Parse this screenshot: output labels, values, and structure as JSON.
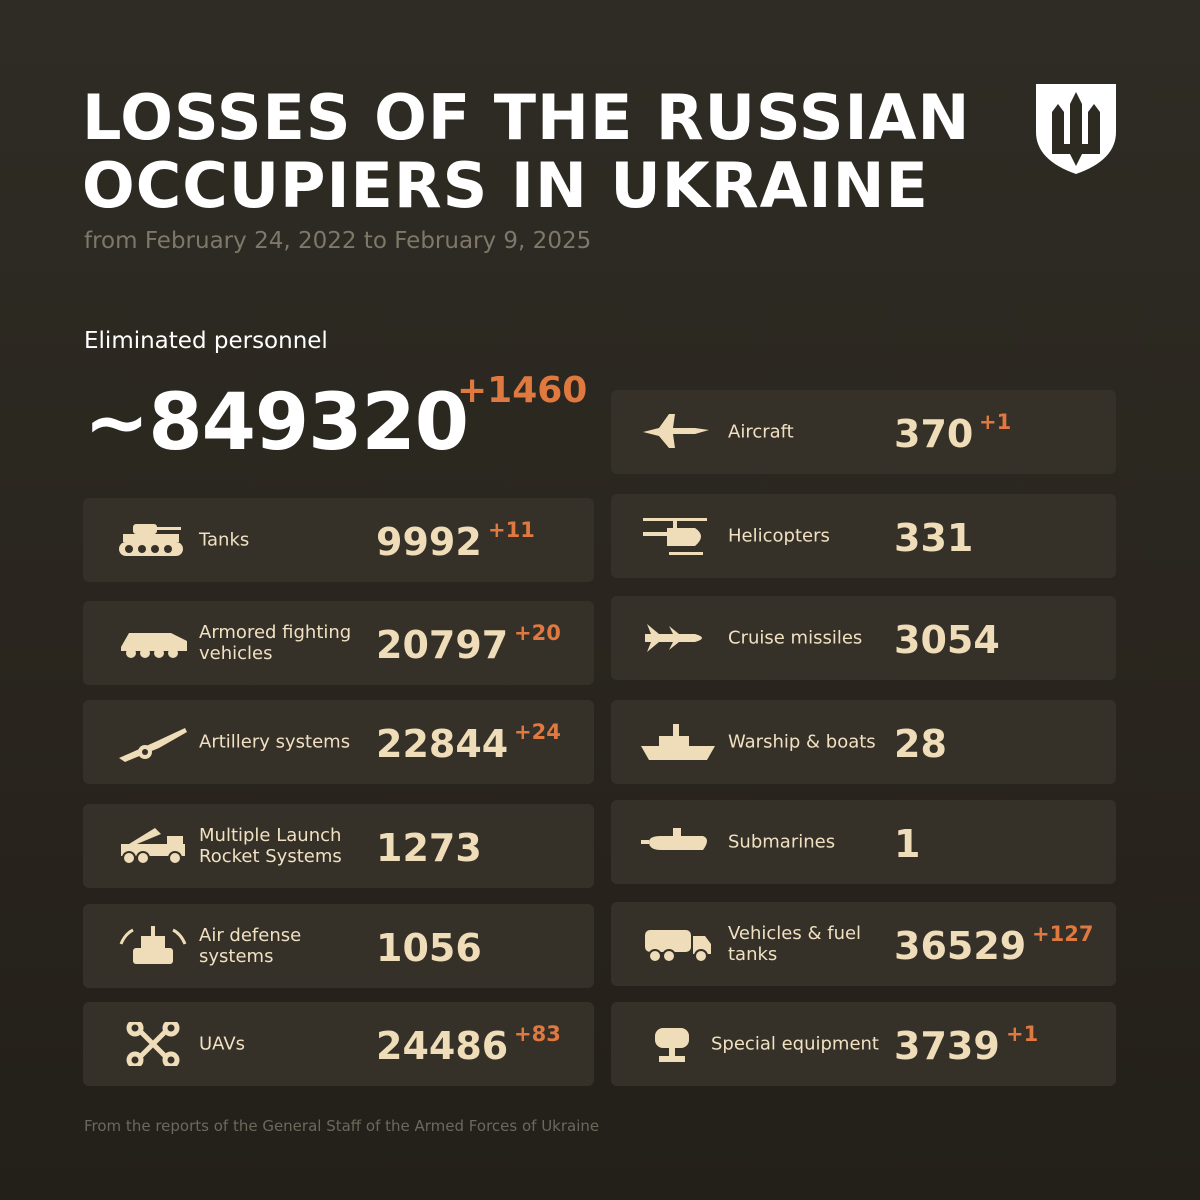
{
  "header": {
    "title_line1": "LOSSES OF THE RUSSIAN",
    "title_line2": "OCCUPIERS IN UKRAINE",
    "subtitle": "from February 24, 2022 to February 9, 2025",
    "emblem": "trident-shield-emblem"
  },
  "personnel": {
    "label": "Eliminated personnel",
    "value": "~849320",
    "delta": "+1460"
  },
  "colors": {
    "accent": "#e0793f",
    "card": "#353028",
    "text": "#efdcb8",
    "background": "#2b2820"
  },
  "left": [
    {
      "label": "Tanks",
      "value": "9992",
      "delta": "+11",
      "icon": "tank-icon"
    },
    {
      "label": "Armored fighting vehicles",
      "value": "20797",
      "delta": "+20",
      "icon": "armored-vehicle-icon"
    },
    {
      "label": "Artillery systems",
      "value": "22844",
      "delta": "+24",
      "icon": "artillery-icon"
    },
    {
      "label": "Multiple Launch Rocket Systems",
      "value": "1273",
      "delta": "",
      "icon": "rocket-launcher-icon"
    },
    {
      "label": "Air defense systems",
      "value": "1056",
      "delta": "",
      "icon": "air-defense-icon"
    },
    {
      "label": "UAVs",
      "value": "24486",
      "delta": "+83",
      "icon": "drone-icon"
    }
  ],
  "right": [
    {
      "label": "Aircraft",
      "value": "370",
      "delta": "+1",
      "icon": "aircraft-icon"
    },
    {
      "label": "Helicopters",
      "value": "331",
      "delta": "",
      "icon": "helicopter-icon"
    },
    {
      "label": "Cruise missiles",
      "value": "3054",
      "delta": "",
      "icon": "missile-icon"
    },
    {
      "label": "Warship & boats",
      "value": "28",
      "delta": "",
      "icon": "warship-icon"
    },
    {
      "label": "Submarines",
      "value": "1",
      "delta": "",
      "icon": "submarine-icon"
    },
    {
      "label": "Vehicles & fuel tanks",
      "value": "36529",
      "delta": "+127",
      "icon": "truck-icon"
    },
    {
      "label": "Special equipment",
      "value": "3739",
      "delta": "+1",
      "icon": "special-equipment-icon"
    }
  ],
  "footer": "From the reports of the General Staff of the Armed Forces of Ukraine"
}
